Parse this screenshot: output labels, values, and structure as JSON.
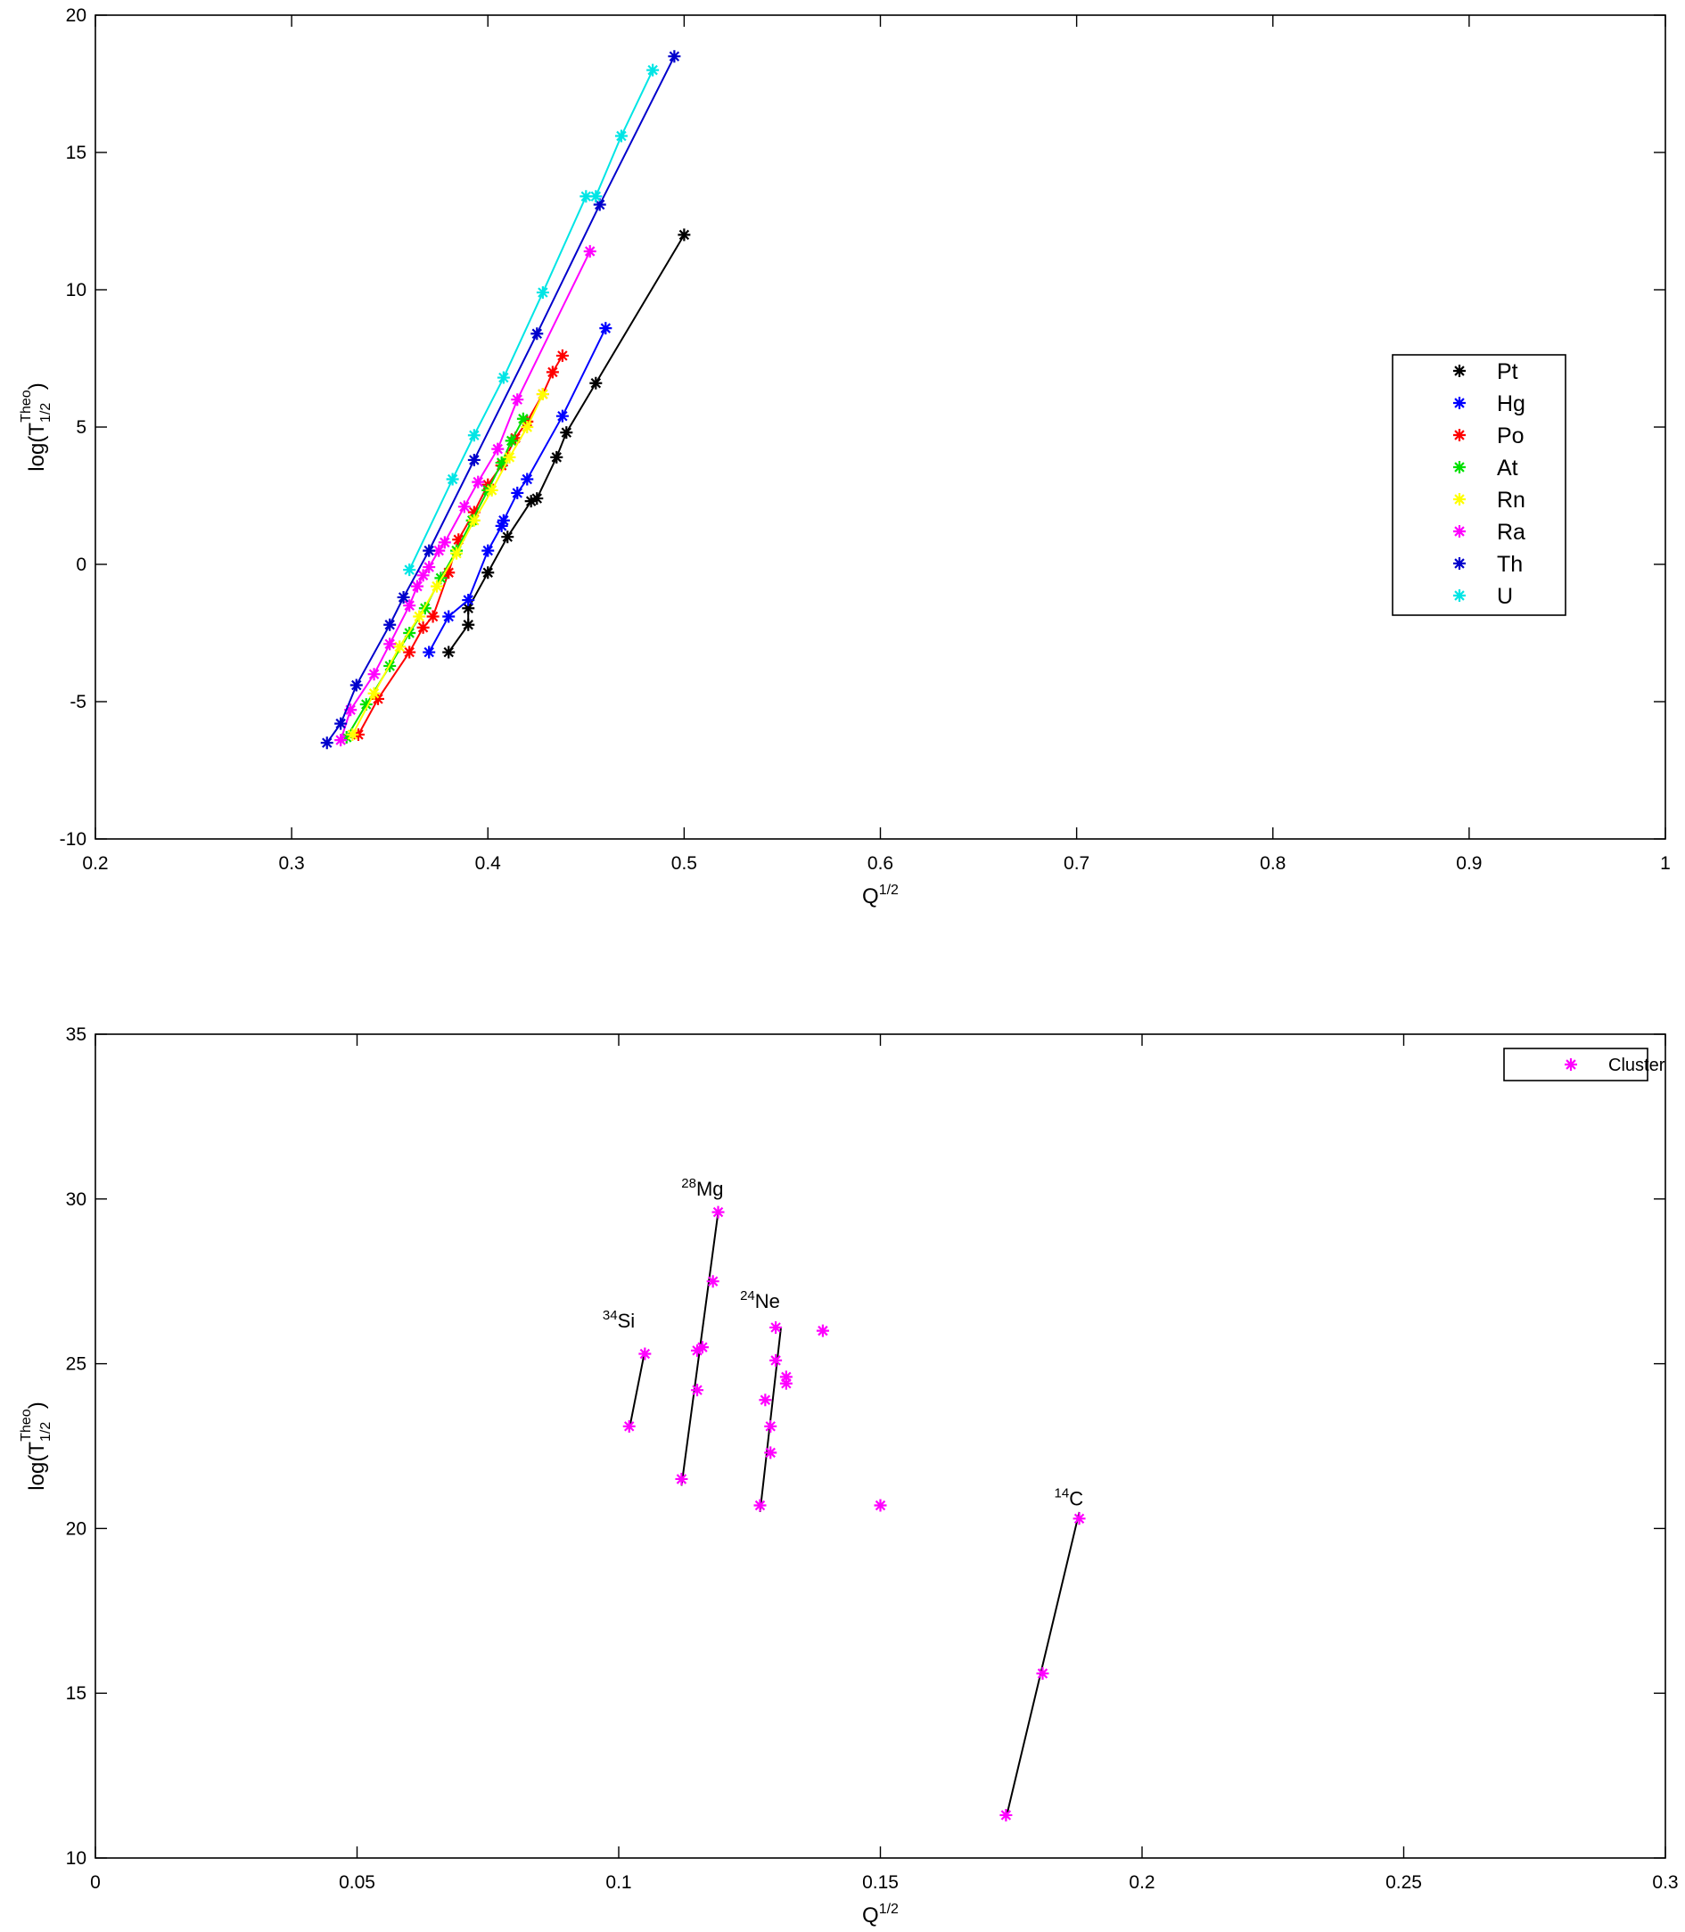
{
  "chart_data": [
    {
      "type": "line",
      "xlabel": {
        "base": "Q",
        "sup": "1/2"
      },
      "ylabel": {
        "base": "log(T",
        "sub": "1/2",
        "sup": "Theo",
        "close": ")"
      },
      "xlim": [
        0.2,
        1.0
      ],
      "ylim": [
        -10,
        20
      ],
      "xticks": [
        0.2,
        0.3,
        0.4,
        0.5,
        0.6,
        0.7,
        0.8,
        0.9,
        1
      ],
      "yticks": [
        -10,
        -5,
        0,
        5,
        10,
        15,
        20
      ],
      "xtick_labels": [
        "0.2",
        "0.3",
        "0.4",
        "0.5",
        "0.6",
        "0.7",
        "0.8",
        "0.9",
        "1"
      ],
      "ytick_labels": [
        "-10",
        "-5",
        "0",
        "5",
        "10",
        "15",
        "20"
      ],
      "grid": false,
      "legend_position": "right",
      "marker": "*",
      "series": [
        {
          "name": "Pt",
          "color": "#000000",
          "points": [
            [
              0.38,
              -3.2
            ],
            [
              0.39,
              -2.2
            ],
            [
              0.39,
              -1.6
            ],
            [
              0.4,
              -0.3
            ],
            [
              0.41,
              1.0
            ],
            [
              0.422,
              2.3
            ],
            [
              0.425,
              2.4
            ],
            [
              0.435,
              3.9
            ],
            [
              0.44,
              4.8
            ],
            [
              0.455,
              6.6
            ],
            [
              0.5,
              12.0
            ]
          ]
        },
        {
          "name": "Hg",
          "color": "#0000ff",
          "points": [
            [
              0.37,
              -3.2
            ],
            [
              0.38,
              -1.9
            ],
            [
              0.39,
              -1.3
            ],
            [
              0.4,
              0.5
            ],
            [
              0.407,
              1.4
            ],
            [
              0.408,
              1.6
            ],
            [
              0.415,
              2.6
            ],
            [
              0.42,
              3.1
            ],
            [
              0.438,
              5.4
            ],
            [
              0.46,
              8.6
            ]
          ]
        },
        {
          "name": "Po",
          "color": "#ff0000",
          "points": [
            [
              0.334,
              -6.2
            ],
            [
              0.344,
              -4.9
            ],
            [
              0.36,
              -3.2
            ],
            [
              0.367,
              -2.3
            ],
            [
              0.372,
              -1.9
            ],
            [
              0.38,
              -0.3
            ],
            [
              0.385,
              0.9
            ],
            [
              0.393,
              1.9
            ],
            [
              0.4,
              2.9
            ],
            [
              0.407,
              3.6
            ],
            [
              0.414,
              4.6
            ],
            [
              0.42,
              5.2
            ],
            [
              0.428,
              6.2
            ],
            [
              0.433,
              7.0
            ],
            [
              0.438,
              7.6
            ]
          ]
        },
        {
          "name": "At",
          "color": "#00e000",
          "points": [
            [
              0.328,
              -6.3
            ],
            [
              0.338,
              -5.1
            ],
            [
              0.35,
              -3.7
            ],
            [
              0.36,
              -2.5
            ],
            [
              0.368,
              -1.6
            ],
            [
              0.376,
              -0.5
            ],
            [
              0.384,
              0.5
            ],
            [
              0.392,
              1.6
            ],
            [
              0.4,
              2.7
            ],
            [
              0.407,
              3.7
            ],
            [
              0.412,
              4.5
            ],
            [
              0.418,
              5.3
            ]
          ]
        },
        {
          "name": "Rn",
          "color": "#ffff00",
          "points": [
            [
              0.331,
              -6.2
            ],
            [
              0.342,
              -4.7
            ],
            [
              0.355,
              -3.0
            ],
            [
              0.365,
              -1.9
            ],
            [
              0.374,
              -0.8
            ],
            [
              0.384,
              0.4
            ],
            [
              0.393,
              1.6
            ],
            [
              0.402,
              2.7
            ],
            [
              0.411,
              3.9
            ],
            [
              0.42,
              5.0
            ],
            [
              0.428,
              6.2
            ]
          ]
        },
        {
          "name": "Ra",
          "color": "#ff00ff",
          "points": [
            [
              0.325,
              -6.4
            ],
            [
              0.33,
              -5.3
            ],
            [
              0.342,
              -4.0
            ],
            [
              0.35,
              -2.9
            ],
            [
              0.36,
              -1.5
            ],
            [
              0.364,
              -0.8
            ],
            [
              0.367,
              -0.4
            ],
            [
              0.37,
              -0.1
            ],
            [
              0.375,
              0.5
            ],
            [
              0.378,
              0.8
            ],
            [
              0.388,
              2.1
            ],
            [
              0.395,
              3.0
            ],
            [
              0.405,
              4.2
            ],
            [
              0.415,
              6.0
            ],
            [
              0.452,
              11.4
            ]
          ]
        },
        {
          "name": "Th",
          "color": "#0000cc",
          "points": [
            [
              0.318,
              -6.5
            ],
            [
              0.325,
              -5.8
            ],
            [
              0.333,
              -4.4
            ],
            [
              0.35,
              -2.2
            ],
            [
              0.357,
              -1.2
            ],
            [
              0.37,
              0.5
            ],
            [
              0.393,
              3.8
            ],
            [
              0.425,
              8.4
            ],
            [
              0.457,
              13.1
            ],
            [
              0.495,
              18.5
            ]
          ]
        },
        {
          "name": "U",
          "color": "#00e5e5",
          "points": [
            [
              0.36,
              -0.2
            ],
            [
              0.382,
              3.1
            ],
            [
              0.393,
              4.7
            ],
            [
              0.408,
              6.8
            ],
            [
              0.428,
              9.9
            ],
            [
              0.45,
              13.4
            ],
            [
              0.455,
              13.4
            ],
            [
              0.468,
              15.6
            ],
            [
              0.484,
              18.0
            ]
          ]
        }
      ]
    },
    {
      "type": "scatter",
      "xlabel": {
        "base": "Q",
        "sup": "1/2"
      },
      "ylabel": {
        "base": "log(T",
        "sub": "1/2",
        "sup": "Theo",
        "close": ")"
      },
      "xlim": [
        0,
        0.3
      ],
      "ylim": [
        10,
        35
      ],
      "xticks": [
        0,
        0.05,
        0.1,
        0.15,
        0.2,
        0.25,
        0.3
      ],
      "yticks": [
        10,
        15,
        20,
        25,
        30,
        35
      ],
      "xtick_labels": [
        "0",
        "0.05",
        "0.1",
        "0.15",
        "0.2",
        "0.25",
        "0.3"
      ],
      "ytick_labels": [
        "10",
        "15",
        "20",
        "25",
        "30",
        "35"
      ],
      "grid": false,
      "legend_position": "top-right",
      "marker": "*",
      "series": [
        {
          "name": "Cluster",
          "color": "#ff00ff",
          "points": [
            [
              0.102,
              23.1
            ],
            [
              0.105,
              25.3
            ],
            [
              0.112,
              21.5
            ],
            [
              0.115,
              24.2
            ],
            [
              0.115,
              25.4
            ],
            [
              0.116,
              25.5
            ],
            [
              0.118,
              27.5
            ],
            [
              0.119,
              29.6
            ],
            [
              0.127,
              20.7
            ],
            [
              0.128,
              23.9
            ],
            [
              0.129,
              23.1
            ],
            [
              0.129,
              22.3
            ],
            [
              0.13,
              25.1
            ],
            [
              0.13,
              26.1
            ],
            [
              0.132,
              24.6
            ],
            [
              0.132,
              24.4
            ],
            [
              0.139,
              26.0
            ],
            [
              0.15,
              20.7
            ],
            [
              0.174,
              11.3
            ],
            [
              0.181,
              15.6
            ],
            [
              0.188,
              20.3
            ]
          ]
        }
      ],
      "trend_lines": [
        [
          [
            0.102,
            23.0
          ],
          [
            0.105,
            25.4
          ]
        ],
        [
          [
            0.112,
            21.3
          ],
          [
            0.119,
            29.6
          ]
        ],
        [
          [
            0.127,
            20.5
          ],
          [
            0.131,
            26.1
          ]
        ],
        [
          [
            0.174,
            11.2
          ],
          [
            0.188,
            20.5
          ]
        ]
      ],
      "annotations": [
        {
          "mass": "34",
          "symbol": "Si",
          "x": 0.1,
          "y": 26.1
        },
        {
          "mass": "28",
          "symbol": "Mg",
          "x": 0.116,
          "y": 30.1
        },
        {
          "mass": "24",
          "symbol": "Ne",
          "x": 0.127,
          "y": 26.7
        },
        {
          "mass": "14",
          "symbol": "C",
          "x": 0.186,
          "y": 20.7
        }
      ]
    }
  ]
}
